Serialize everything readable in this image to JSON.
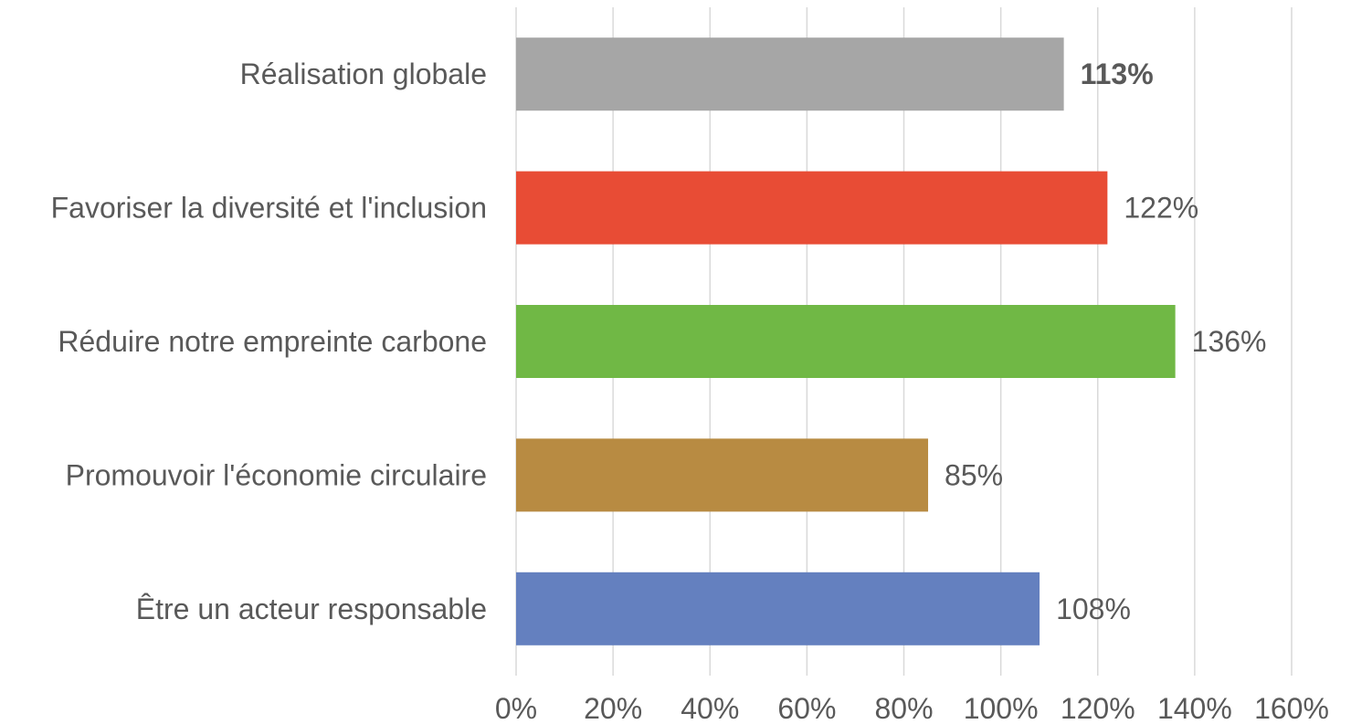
{
  "chart_data": {
    "type": "bar",
    "orientation": "horizontal",
    "title": "",
    "xlabel": "",
    "ylabel": "",
    "xlim": [
      0,
      160
    ],
    "grid": true,
    "legend": "none",
    "categories": [
      "Réalisation globale",
      "Favoriser la diversité et l'inclusion",
      "Réduire notre empreinte carbone",
      "Promouvoir l'économie circulaire",
      "Être un acteur responsable"
    ],
    "values": [
      113,
      122,
      136,
      85,
      108
    ],
    "data_labels": [
      "113%",
      "122%",
      "136%",
      "85%",
      "108%"
    ],
    "data_label_bold": [
      true,
      false,
      false,
      false,
      false
    ],
    "bar_colors": [
      "#a6a6a6",
      "#e84c35",
      "#70b845",
      "#b88b42",
      "#6480bf"
    ],
    "x_ticks": [
      0,
      20,
      40,
      60,
      80,
      100,
      120,
      140,
      160
    ],
    "x_tick_labels": [
      "0%",
      "20%",
      "40%",
      "60%",
      "80%",
      "100%",
      "120%",
      "140%",
      "160%"
    ]
  }
}
